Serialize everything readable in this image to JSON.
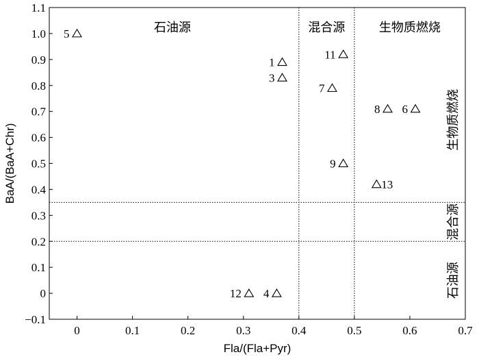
{
  "chart_data": {
    "type": "scatter",
    "title": "",
    "xlabel": "Fla/(Fla+Pyr)",
    "ylabel": "BaA/(BaA+Chr)",
    "xlim": [
      -0.05,
      0.7
    ],
    "ylim": [
      -0.1,
      1.1
    ],
    "x_ticks": [
      0,
      0.1,
      0.2,
      0.3,
      0.4,
      0.5,
      0.6,
      0.7
    ],
    "x_tick_labels": [
      "0",
      "0.1",
      "0.2",
      "0.3",
      "0.4",
      "0.5",
      "0.6",
      "0.7"
    ],
    "y_ticks": [
      -0.1,
      0,
      0.1,
      0.2,
      0.3,
      0.4,
      0.5,
      0.6,
      0.7,
      0.8,
      0.9,
      1.0,
      1.1
    ],
    "y_tick_labels": [
      "−0.1",
      "0",
      "0.1",
      "0.2",
      "0.3",
      "0.4",
      "0.5",
      "0.6",
      "0.7",
      "0.8",
      "0.9",
      "1.0",
      "1.1"
    ],
    "grid": false,
    "marker": "triangle-open",
    "points": [
      {
        "label": "5",
        "x": 0.0,
        "y": 1.0
      },
      {
        "label": "1",
        "x": 0.37,
        "y": 0.89
      },
      {
        "label": "3",
        "x": 0.37,
        "y": 0.83
      },
      {
        "label": "11",
        "x": 0.48,
        "y": 0.92
      },
      {
        "label": "7",
        "x": 0.46,
        "y": 0.79
      },
      {
        "label": "8",
        "x": 0.56,
        "y": 0.71
      },
      {
        "label": "6",
        "x": 0.61,
        "y": 0.71
      },
      {
        "label": "9",
        "x": 0.48,
        "y": 0.5
      },
      {
        "label": "13",
        "x": 0.54,
        "y": 0.42
      },
      {
        "label": "12",
        "x": 0.31,
        "y": 0.0
      },
      {
        "label": "4",
        "x": 0.36,
        "y": 0.0
      }
    ],
    "vertical_divider_lines": [
      0.4,
      0.5
    ],
    "horizontal_divider_lines": [
      0.35,
      0.2
    ],
    "x_region_labels": [
      "石油源",
      "混合源",
      "生物质燃烧"
    ],
    "y_region_labels": [
      "生物质燃烧",
      "混合源",
      "石油源"
    ]
  }
}
